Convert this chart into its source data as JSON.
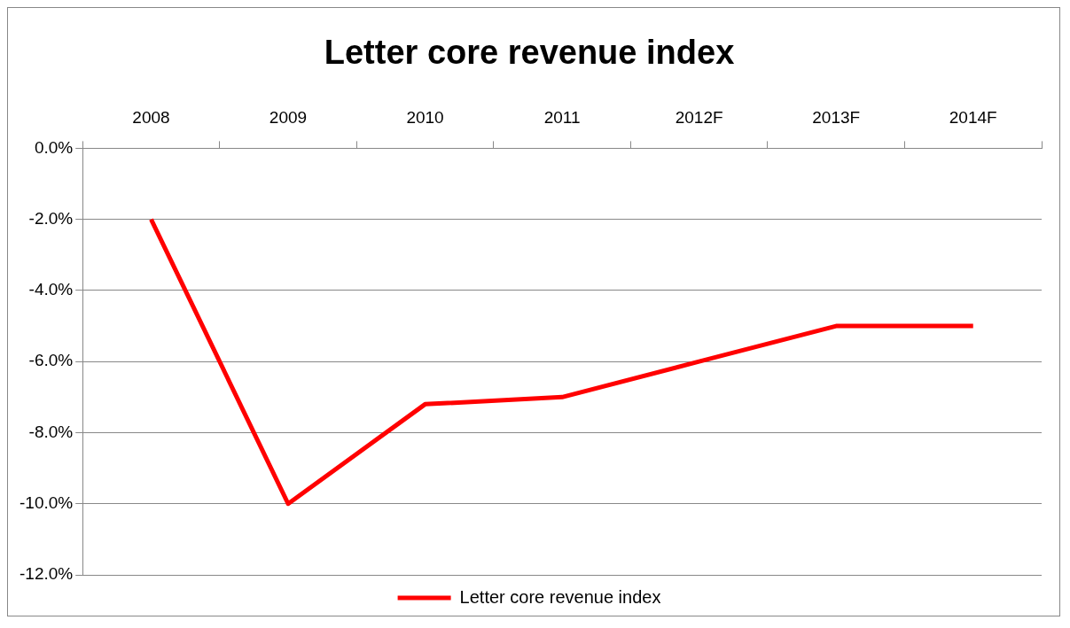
{
  "chart_data": {
    "type": "line",
    "title": "Letter core revenue index",
    "categories": [
      "2008",
      "2009",
      "2010",
      "2011",
      "2012F",
      "2013F",
      "2014F"
    ],
    "series": [
      {
        "name": "Letter core revenue index",
        "color": "#ff0000",
        "values": [
          -2.0,
          -10.0,
          -7.2,
          -7.0,
          -6.0,
          -5.0,
          -5.0
        ]
      }
    ],
    "ylim": [
      -12,
      0
    ],
    "yticks": [
      {
        "value": 0,
        "label": "0.0%"
      },
      {
        "value": -2,
        "label": "-2.0%"
      },
      {
        "value": -4,
        "label": "-4.0%"
      },
      {
        "value": -6,
        "label": "-6.0%"
      },
      {
        "value": -8,
        "label": "-8.0%"
      },
      {
        "value": -10,
        "label": "-10.0%"
      },
      {
        "value": -12,
        "label": "-12.0%"
      }
    ],
    "grid": "y",
    "legend": "bottom",
    "marker": "none",
    "line_style": "solid"
  }
}
